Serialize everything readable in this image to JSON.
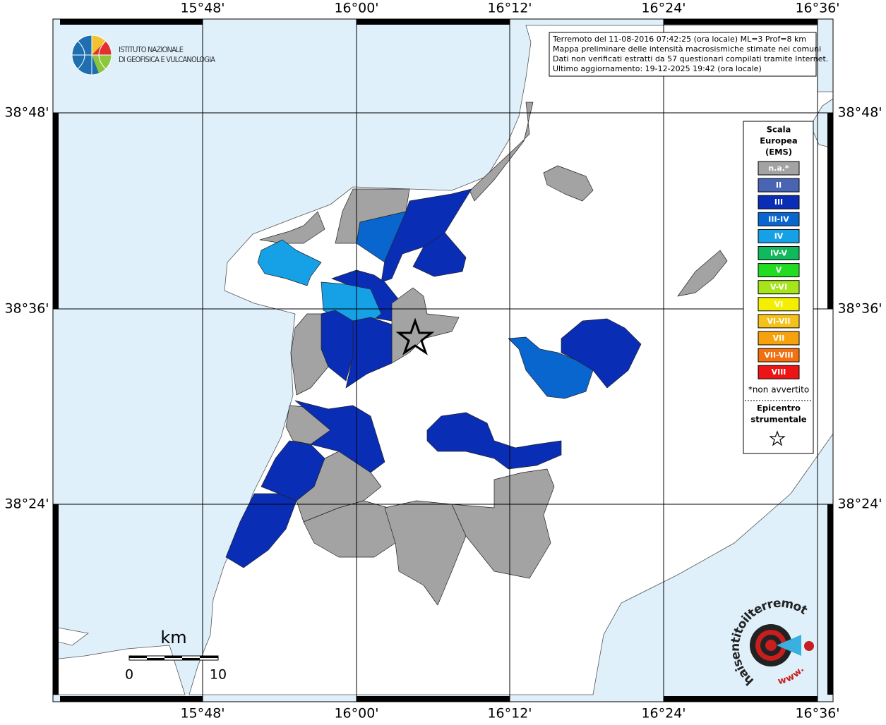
{
  "header": {
    "lines": [
      "Terremoto del 11-08-2016 07:42:25 (ora locale) ML=3 Prof=8 km",
      "Mappa preliminare delle intensità macrosismiche stimate nei comuni",
      "Dati non verificati estratti da 57 questionari compilati tramite Internet.",
      "Ultimo aggiornamento: 19-12-2025 19:42 (ora locale)"
    ]
  },
  "logo": {
    "lines": [
      "ISTITUTO NAZIONALE",
      "DI GEOFISICA E VULCANOLOGIA"
    ]
  },
  "grid": {
    "lon_labels": [
      "15°48'",
      "16°00'",
      "16°12'",
      "16°24'",
      "16°36'"
    ],
    "lat_labels": [
      "38°48'",
      "38°36'",
      "38°24'"
    ]
  },
  "legend": {
    "title_lines": [
      "Scala",
      "Europea",
      "(EMS)"
    ],
    "levels": [
      {
        "label": "n.a.*",
        "color": "#a3a3a3"
      },
      {
        "label": "II",
        "color": "#4a64b4"
      },
      {
        "label": "III",
        "color": "#0a2db5"
      },
      {
        "label": "III-IV",
        "color": "#0a66cf"
      },
      {
        "label": "IV",
        "color": "#16a0e6"
      },
      {
        "label": "IV-V",
        "color": "#10b95c"
      },
      {
        "label": "V",
        "color": "#22dc22"
      },
      {
        "label": "V-VI",
        "color": "#a6e41c"
      },
      {
        "label": "VI",
        "color": "#f4ee00"
      },
      {
        "label": "VI-VII",
        "color": "#f4c21a"
      },
      {
        "label": "VII",
        "color": "#f6a20c"
      },
      {
        "label": "VII-VIII",
        "color": "#f2700e"
      },
      {
        "label": "VIII",
        "color": "#ec1414"
      }
    ],
    "note": "*non avvertito",
    "epicenter_lines": [
      "Epicentro",
      "strumentale"
    ]
  },
  "scale_bar": {
    "unit": "km",
    "labels": [
      "0",
      "10"
    ]
  },
  "brand": {
    "site": "haisentitoilterremoto.it",
    "prefix": "www."
  }
}
